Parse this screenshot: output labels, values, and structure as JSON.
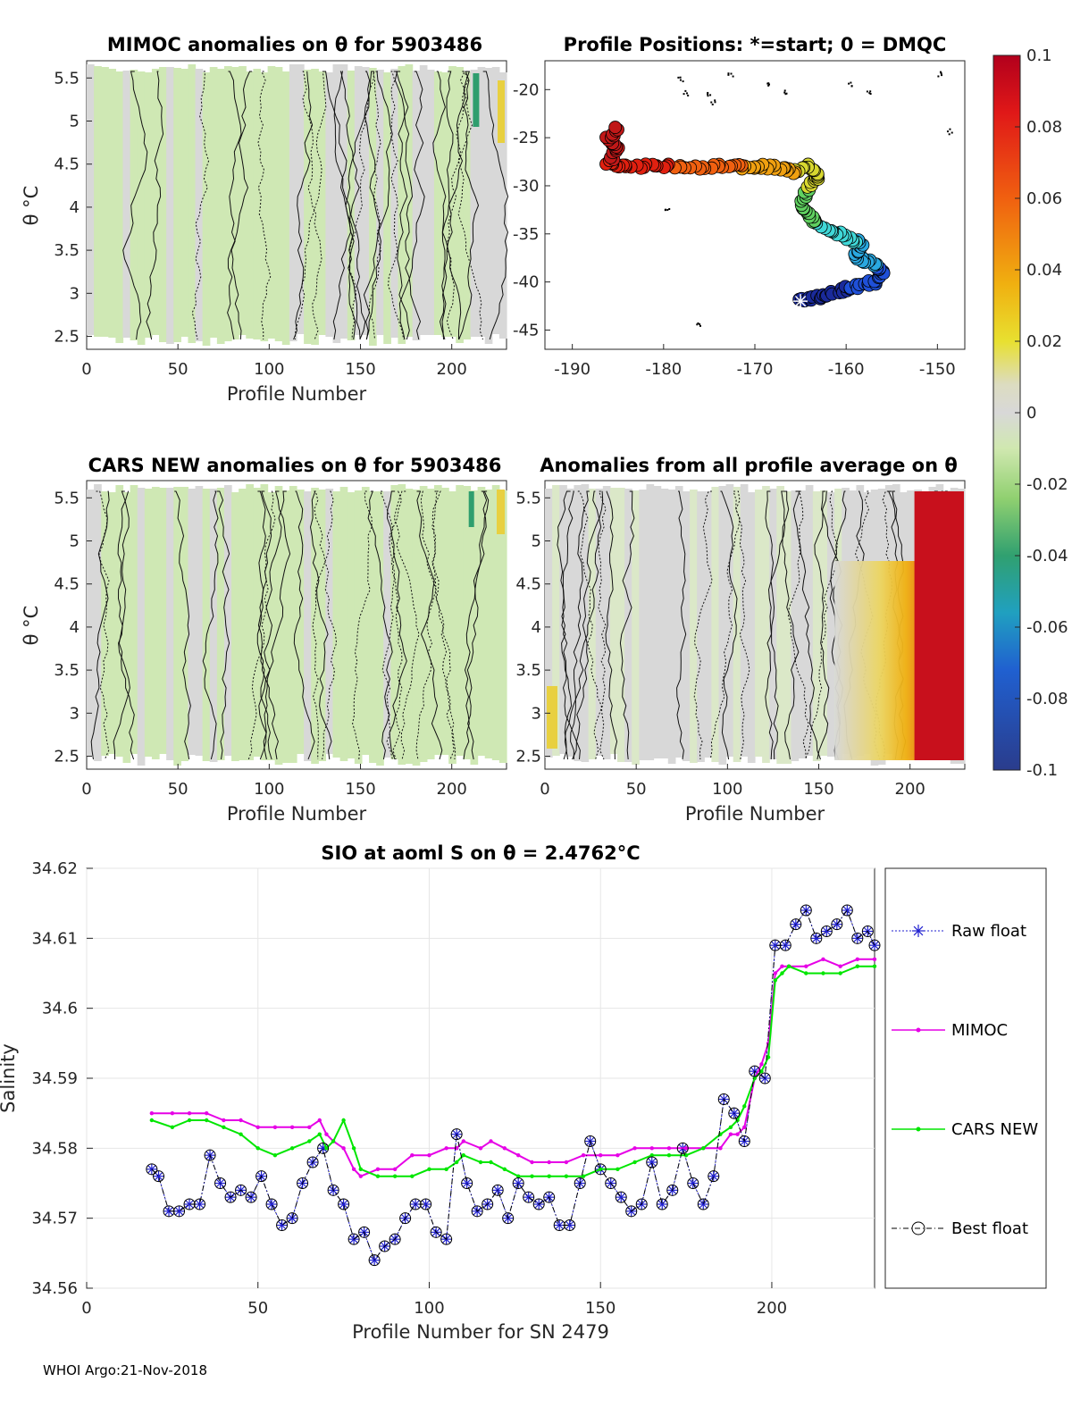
{
  "chart_data": [
    {
      "id": "mimoc",
      "type": "heatmap",
      "title": "MIMOC anomalies on θ  for 5903486",
      "xlabel": "Profile Number",
      "ylabel": "θ °C",
      "xlim": [
        0,
        230
      ],
      "ylim": [
        2.35,
        5.7
      ],
      "xticks": [
        0,
        50,
        100,
        150,
        200
      ],
      "yticks": [
        2.5,
        3,
        3.5,
        4,
        4.5,
        5,
        5.5
      ],
      "xtick_labels": [
        "0",
        "50",
        "100",
        "150",
        "200"
      ],
      "ytick_labels": [
        "2.5",
        "3",
        "3.5",
        "4",
        "4.5",
        "5",
        "5.5"
      ]
    },
    {
      "id": "positions",
      "type": "scatter",
      "title": "Profile Positions: *=start; 0 = DMQC",
      "xlim": [
        -193,
        -147
      ],
      "ylim": [
        -47,
        -17
      ],
      "xticks": [
        -190,
        -180,
        -170,
        -160,
        -150
      ],
      "yticks": [
        -45,
        -40,
        -35,
        -30,
        -25,
        -20
      ],
      "xtick_labels": [
        "-190",
        "-180",
        "-170",
        "-160",
        "-150"
      ],
      "ytick_labels": [
        "-45",
        "-40",
        "-35",
        "-30",
        "-25",
        "-20"
      ],
      "track_lon": [
        -165,
        -163,
        -161,
        -159,
        -157,
        -156,
        -157,
        -159,
        -158,
        -160,
        -161,
        -163,
        -164,
        -165,
        -164,
        -163,
        -164,
        -166,
        -168,
        -170,
        -172,
        -175,
        -178,
        -181,
        -184,
        -186,
        -185,
        -186,
        -185
      ],
      "track_lat": [
        -42,
        -41.5,
        -41,
        -40.5,
        -40,
        -39,
        -38,
        -37.5,
        -36,
        -35.5,
        -35,
        -34,
        -33,
        -32,
        -30,
        -29,
        -28,
        -28.5,
        -28,
        -28,
        -28,
        -28,
        -28,
        -28,
        -28,
        -27.5,
        -26,
        -25,
        -24
      ]
    },
    {
      "id": "colorbar",
      "type": "heatmap",
      "range": [
        -0.1,
        0.1
      ],
      "ticks": [
        0.1,
        0.08,
        0.06,
        0.04,
        0.02,
        0,
        -0.02,
        -0.04,
        -0.06,
        -0.08,
        -0.1
      ],
      "tick_labels": [
        "0.1",
        "0.08",
        "0.06",
        "0.04",
        "0.02",
        "0",
        "-0.02",
        "-0.04",
        "-0.06",
        "-0.08",
        "-0.1"
      ]
    },
    {
      "id": "cars",
      "type": "heatmap",
      "title": "CARS NEW anomalies on θ for 5903486",
      "xlabel": "Profile Number",
      "ylabel": "θ °C",
      "xlim": [
        0,
        230
      ],
      "ylim": [
        2.35,
        5.7
      ],
      "xticks": [
        0,
        50,
        100,
        150,
        200
      ],
      "yticks": [
        2.5,
        3,
        3.5,
        4,
        4.5,
        5,
        5.5
      ],
      "xtick_labels": [
        "0",
        "50",
        "100",
        "150",
        "200"
      ],
      "ytick_labels": [
        "2.5",
        "3",
        "3.5",
        "4",
        "4.5",
        "5",
        "5.5"
      ]
    },
    {
      "id": "allavg",
      "type": "heatmap",
      "title": "Anomalies from all profile average on θ",
      "xlabel": "Profile Number",
      "xlim": [
        0,
        230
      ],
      "ylim": [
        2.35,
        5.7
      ],
      "xticks": [
        0,
        50,
        100,
        150,
        200
      ],
      "yticks": [
        2.5,
        3,
        3.5,
        4,
        4.5,
        5,
        5.5
      ],
      "xtick_labels": [
        "0",
        "50",
        "100",
        "150",
        "200"
      ],
      "ytick_labels": [
        "2.5",
        "3",
        "3.5",
        "4",
        "4.5",
        "5",
        "5.5"
      ]
    },
    {
      "id": "salinity",
      "type": "line",
      "title": "SIO at aoml S on θ = 2.4762°C",
      "xlabel": "Profile Number for SN 2479",
      "ylabel": "Salinity",
      "xlim": [
        0,
        230
      ],
      "ylim": [
        34.56,
        34.62
      ],
      "grid": true,
      "legend_position": "right-outside",
      "xticks": [
        0,
        50,
        100,
        150,
        200
      ],
      "yticks": [
        34.56,
        34.57,
        34.58,
        34.59,
        34.6,
        34.61,
        34.62
      ],
      "xtick_labels": [
        "0",
        "50",
        "100",
        "150",
        "200"
      ],
      "ytick_labels": [
        "34.56",
        "34.57",
        "34.58",
        "34.59",
        "34.6",
        "34.61",
        "34.62"
      ],
      "series": [
        {
          "name": "Raw float",
          "color": "#1f1fd0",
          "x": [
            19,
            21,
            24,
            27,
            30,
            33,
            36,
            39,
            42,
            45,
            48,
            51,
            54,
            57,
            60,
            63,
            66,
            69,
            72,
            75,
            78,
            81,
            84,
            87,
            90,
            93,
            96,
            99,
            102,
            105,
            108,
            111,
            114,
            117,
            120,
            123,
            126,
            129,
            132,
            135,
            138,
            141,
            144,
            147,
            150,
            153,
            156,
            159,
            162,
            165,
            168,
            171,
            174,
            177,
            180,
            183,
            186,
            189,
            192,
            195,
            198,
            201,
            204,
            207,
            210,
            213,
            216,
            219,
            222,
            225,
            228,
            230
          ],
          "values": [
            34.577,
            34.576,
            34.571,
            34.571,
            34.572,
            34.572,
            34.579,
            34.575,
            34.573,
            34.574,
            34.573,
            34.576,
            34.572,
            34.569,
            34.57,
            34.575,
            34.578,
            34.58,
            34.574,
            34.572,
            34.567,
            34.568,
            34.564,
            34.566,
            34.567,
            34.57,
            34.572,
            34.572,
            34.568,
            34.567,
            34.582,
            34.575,
            34.571,
            34.572,
            34.574,
            34.57,
            34.575,
            34.573,
            34.572,
            34.573,
            34.569,
            34.569,
            34.575,
            34.581,
            34.577,
            34.575,
            34.573,
            34.571,
            34.572,
            34.578,
            34.572,
            34.574,
            34.58,
            34.575,
            34.572,
            34.576,
            34.587,
            34.585,
            34.581,
            34.591,
            34.59,
            34.609,
            34.609,
            34.612,
            34.614,
            34.61,
            34.611,
            34.612,
            34.614,
            34.61,
            34.611,
            34.609
          ]
        },
        {
          "name": "MIMOC",
          "color": "#e600e6",
          "x": [
            19,
            25,
            30,
            35,
            40,
            45,
            50,
            55,
            60,
            65,
            68,
            70,
            72,
            75,
            78,
            80,
            85,
            90,
            95,
            100,
            105,
            108,
            110,
            115,
            118,
            122,
            126,
            130,
            135,
            140,
            145,
            150,
            155,
            160,
            165,
            170,
            175,
            180,
            185,
            188,
            190,
            192,
            195,
            197,
            199,
            201,
            203,
            205,
            210,
            215,
            220,
            225,
            230
          ],
          "values": [
            34.585,
            34.585,
            34.585,
            34.585,
            34.584,
            34.584,
            34.583,
            34.583,
            34.583,
            34.583,
            34.584,
            34.582,
            34.581,
            34.58,
            34.577,
            34.576,
            34.577,
            34.577,
            34.579,
            34.579,
            34.58,
            34.58,
            34.581,
            34.58,
            34.581,
            34.58,
            34.579,
            34.578,
            34.578,
            34.578,
            34.579,
            34.579,
            34.579,
            34.58,
            34.58,
            34.58,
            34.58,
            34.58,
            34.58,
            34.582,
            34.582,
            34.583,
            34.59,
            34.592,
            34.595,
            34.605,
            34.606,
            34.606,
            34.606,
            34.607,
            34.606,
            34.607,
            34.607
          ]
        },
        {
          "name": "CARS NEW",
          "color": "#00e600",
          "x": [
            19,
            25,
            30,
            35,
            40,
            45,
            50,
            55,
            60,
            65,
            68,
            70,
            72,
            75,
            78,
            80,
            85,
            90,
            95,
            100,
            105,
            108,
            110,
            115,
            118,
            122,
            126,
            130,
            135,
            140,
            145,
            150,
            155,
            160,
            165,
            170,
            175,
            180,
            185,
            188,
            190,
            192,
            195,
            197,
            199,
            201,
            203,
            205,
            210,
            215,
            220,
            225,
            230
          ],
          "values": [
            34.584,
            34.583,
            34.584,
            34.584,
            34.583,
            34.582,
            34.58,
            34.579,
            34.58,
            34.581,
            34.582,
            34.58,
            34.581,
            34.584,
            34.58,
            34.577,
            34.576,
            34.576,
            34.576,
            34.577,
            34.577,
            34.578,
            34.579,
            34.578,
            34.578,
            34.577,
            34.576,
            34.576,
            34.576,
            34.576,
            34.576,
            34.577,
            34.577,
            34.578,
            34.579,
            34.579,
            34.579,
            34.58,
            34.582,
            34.583,
            34.584,
            34.586,
            34.59,
            34.591,
            34.593,
            34.604,
            34.605,
            34.606,
            34.605,
            34.605,
            34.605,
            34.606,
            34.606
          ]
        },
        {
          "name": "Best float",
          "color": "#000000",
          "x": [
            19,
            21,
            24,
            27,
            30,
            33,
            36,
            39,
            42,
            45,
            48,
            51,
            54,
            57,
            60,
            63,
            66,
            69,
            72,
            75,
            78,
            81,
            84,
            87,
            90,
            93,
            96,
            99,
            102,
            105,
            108,
            111,
            114,
            117,
            120,
            123,
            126,
            129,
            132,
            135,
            138,
            141,
            144,
            147,
            150,
            153,
            156,
            159,
            162,
            165,
            168,
            171,
            174,
            177,
            180,
            183,
            186,
            189,
            192,
            195,
            198,
            201,
            204,
            207,
            210,
            213,
            216,
            219,
            222,
            225,
            228,
            230
          ],
          "values": [
            34.577,
            34.576,
            34.571,
            34.571,
            34.572,
            34.572,
            34.579,
            34.575,
            34.573,
            34.574,
            34.573,
            34.576,
            34.572,
            34.569,
            34.57,
            34.575,
            34.578,
            34.58,
            34.574,
            34.572,
            34.567,
            34.568,
            34.564,
            34.566,
            34.567,
            34.57,
            34.572,
            34.572,
            34.568,
            34.567,
            34.582,
            34.575,
            34.571,
            34.572,
            34.574,
            34.57,
            34.575,
            34.573,
            34.572,
            34.573,
            34.569,
            34.569,
            34.575,
            34.581,
            34.577,
            34.575,
            34.573,
            34.571,
            34.572,
            34.578,
            34.572,
            34.574,
            34.58,
            34.575,
            34.572,
            34.576,
            34.587,
            34.585,
            34.581,
            34.591,
            34.59,
            34.609,
            34.609,
            34.612,
            34.614,
            34.61,
            34.611,
            34.612,
            34.614,
            34.61,
            34.611,
            34.609
          ]
        }
      ]
    }
  ],
  "footer": "WHOI Argo:21-Nov-2018"
}
